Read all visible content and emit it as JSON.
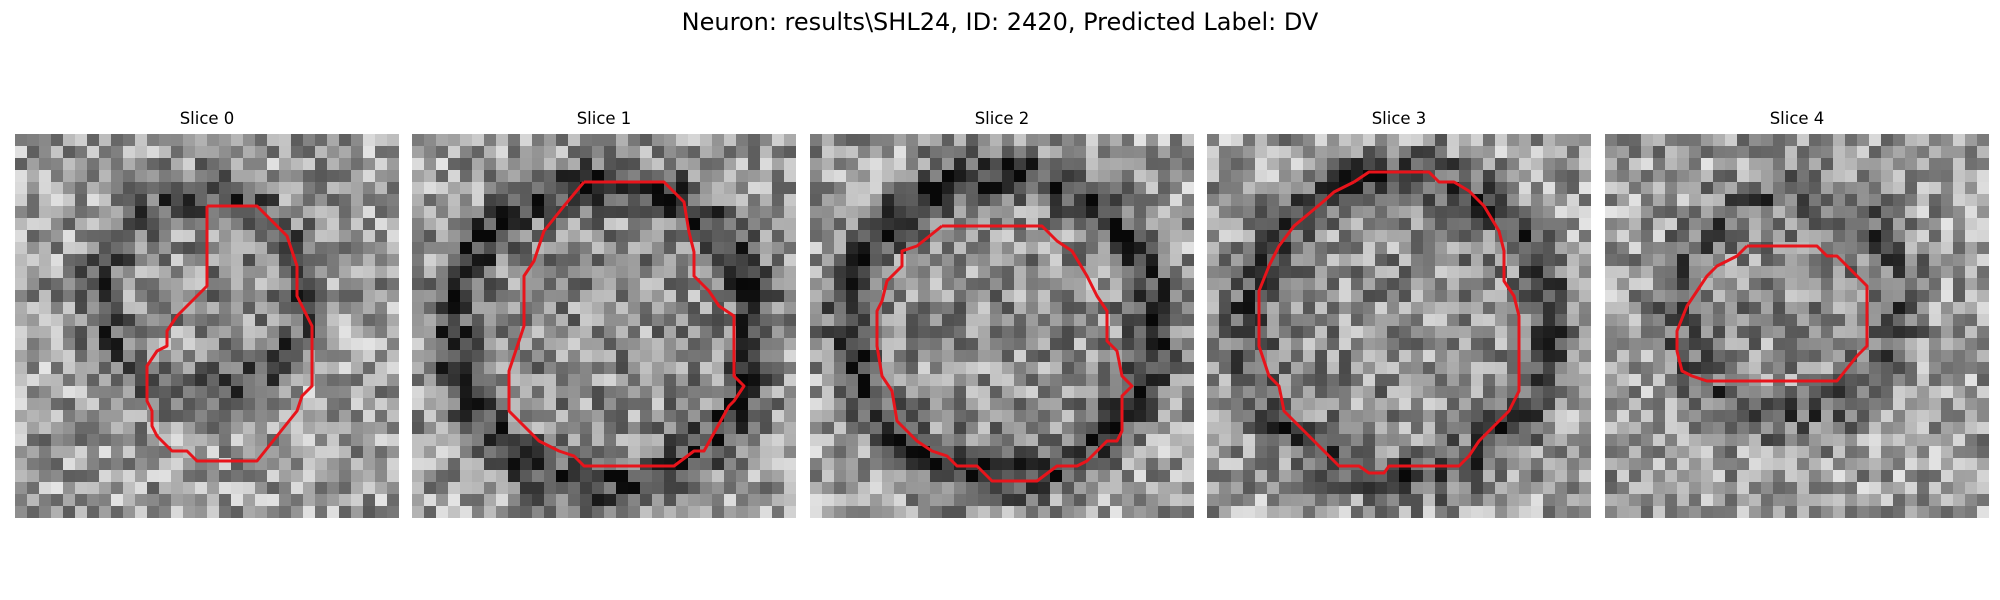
{
  "figure": {
    "title": "Neuron: results\\SHL24, ID: 2420, Predicted Label: DV"
  },
  "contour_color": "#e8141b",
  "slices": [
    {
      "label": "Slice 0",
      "seed": 11,
      "cell_radius": 0.27,
      "ring_darkness": 0.28,
      "center": [
        0.48,
        0.42
      ]
    },
    {
      "label": "Slice 1",
      "seed": 23,
      "cell_radius": 0.4,
      "ring_darkness": 0.38,
      "center": [
        0.5,
        0.52
      ]
    },
    {
      "label": "Slice 2",
      "seed": 37,
      "cell_radius": 0.4,
      "ring_darkness": 0.4,
      "center": [
        0.5,
        0.5
      ]
    },
    {
      "label": "Slice 3",
      "seed": 41,
      "cell_radius": 0.4,
      "ring_darkness": 0.32,
      "center": [
        0.5,
        0.5
      ]
    },
    {
      "label": "Slice 4",
      "seed": 53,
      "cell_radius": 0.3,
      "ring_darkness": 0.22,
      "center": [
        0.48,
        0.45
      ]
    }
  ]
}
